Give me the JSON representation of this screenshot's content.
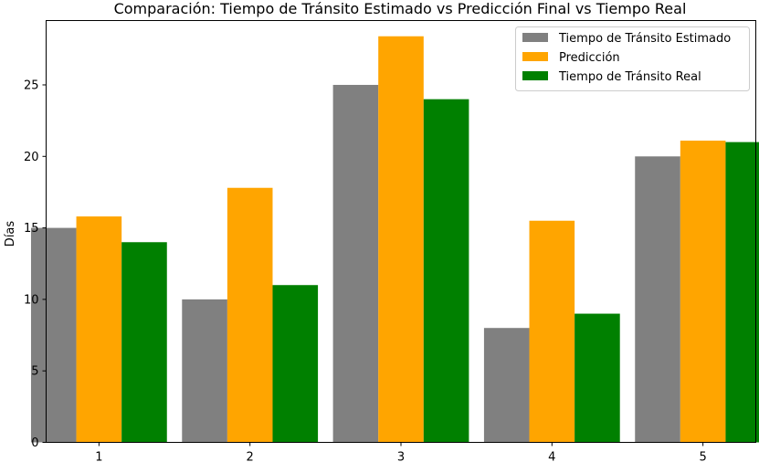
{
  "chart_data": {
    "type": "bar",
    "title": "Comparación: Tiempo de Tránsito Estimado vs Predicción Final vs Tiempo Real",
    "xlabel": "",
    "ylabel": "Días",
    "categories": [
      "1",
      "2",
      "3",
      "4",
      "5"
    ],
    "ylim": [
      0,
      29.5
    ],
    "yticks": [
      0,
      5,
      10,
      15,
      20,
      25
    ],
    "grid": false,
    "legend_position": "top-right",
    "series": [
      {
        "name": "Tiempo de Tránsito Estimado",
        "color": "#808080",
        "values": [
          15,
          10,
          25,
          8,
          20
        ]
      },
      {
        "name": "Predicción",
        "color": "#ffa500",
        "values": [
          15.8,
          17.8,
          28.4,
          15.5,
          21.1
        ]
      },
      {
        "name": "Tiempo de Tránsito Real",
        "color": "#008000",
        "values": [
          14,
          11,
          24,
          9,
          21
        ]
      }
    ]
  }
}
